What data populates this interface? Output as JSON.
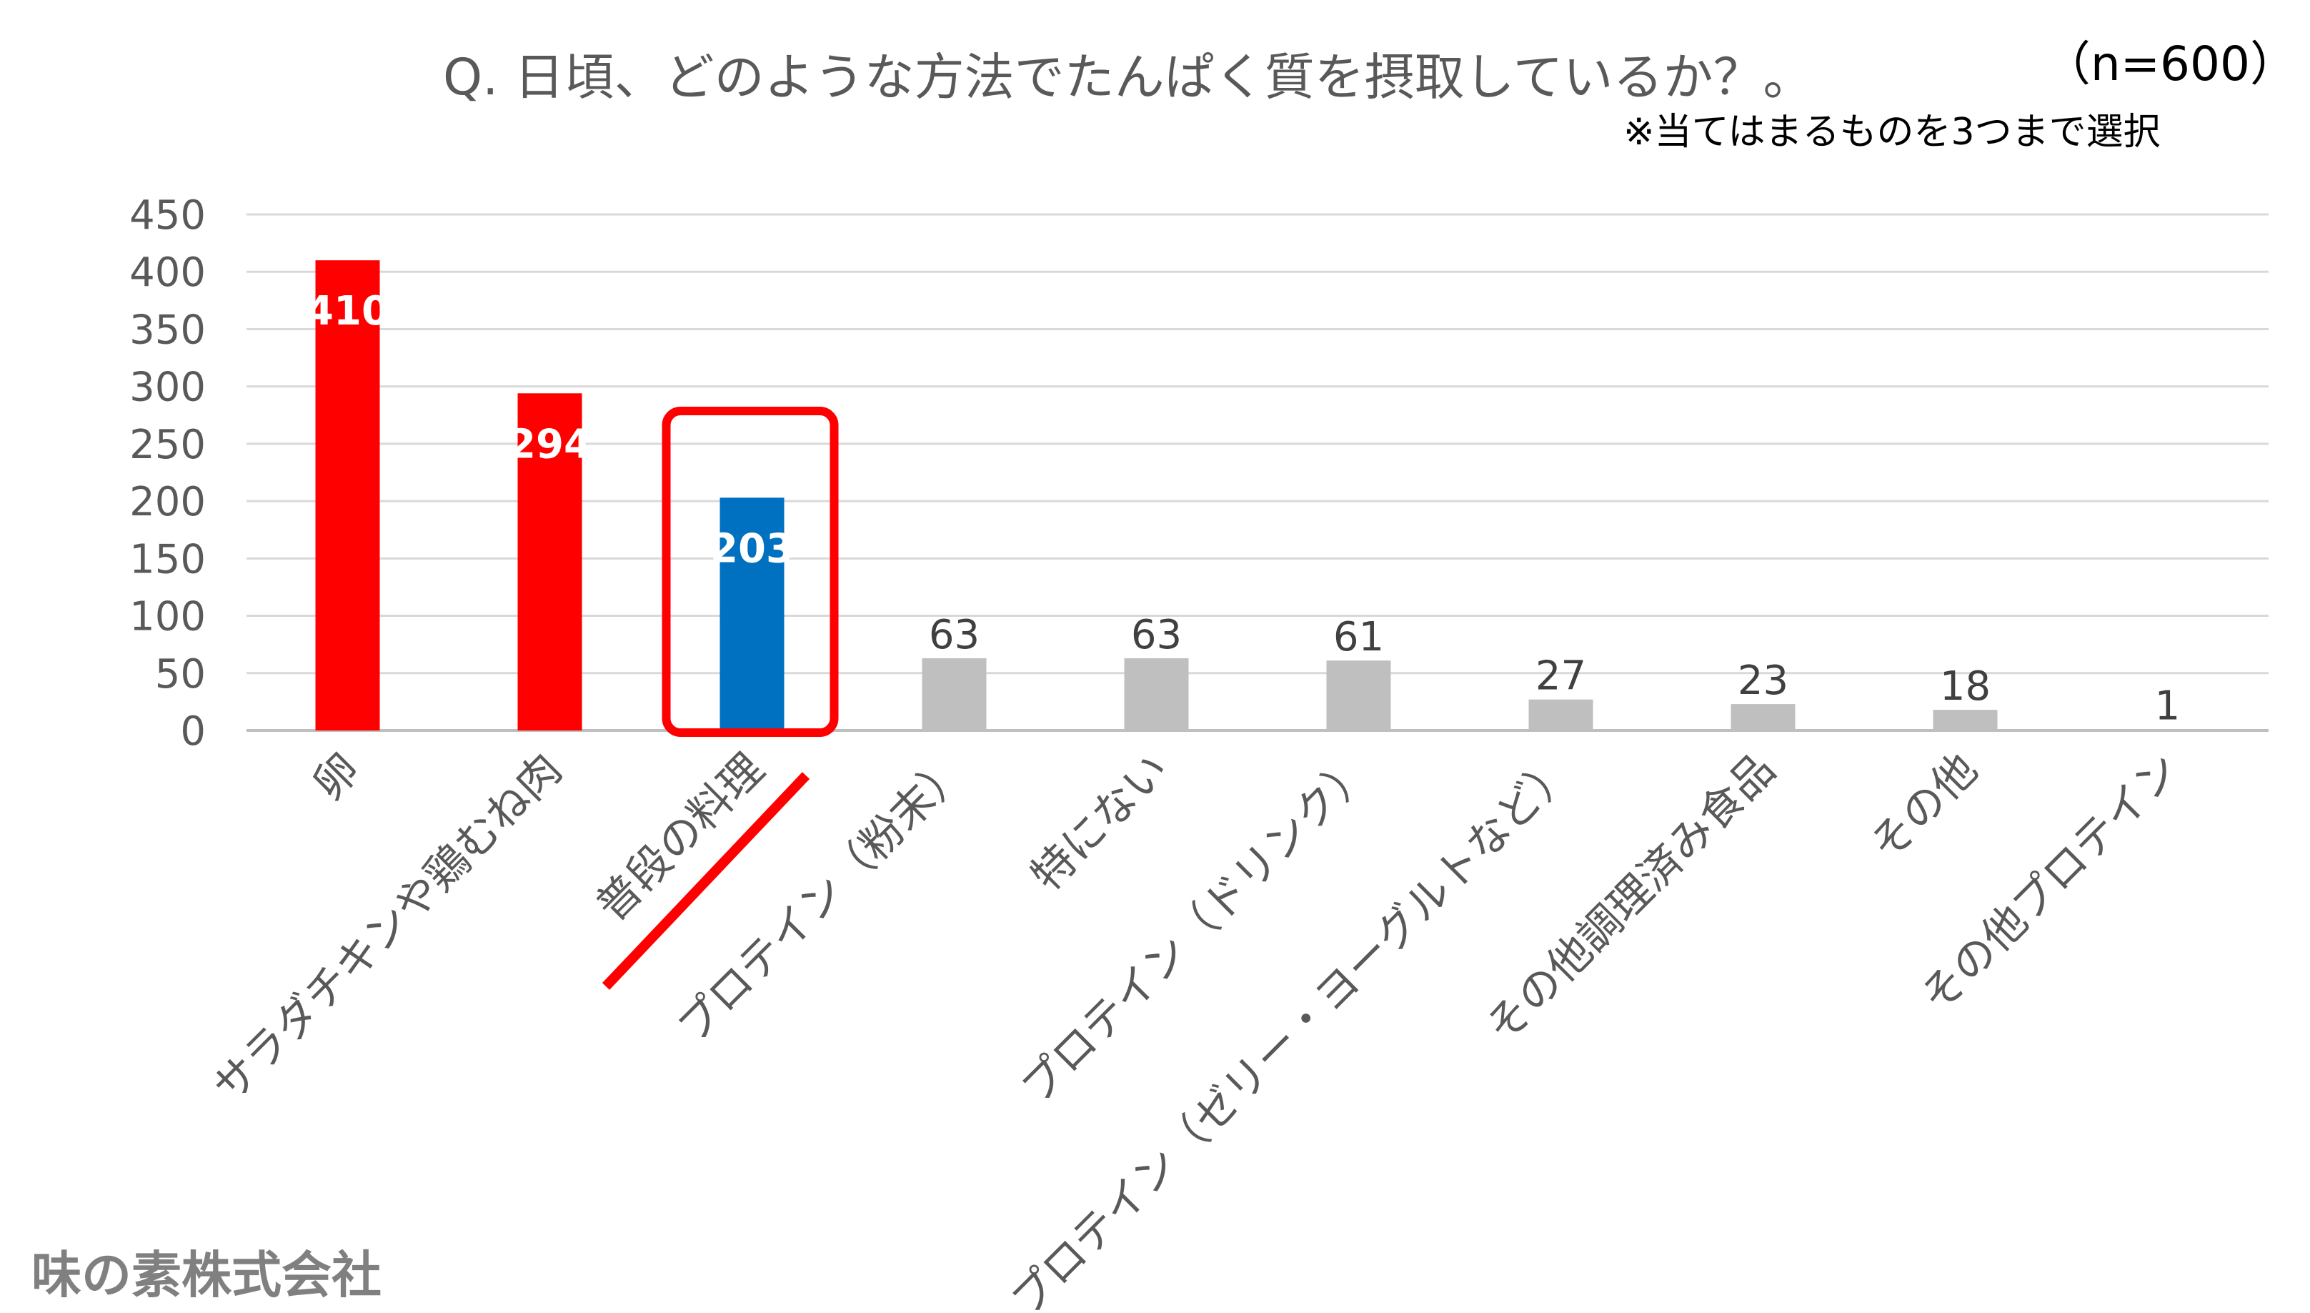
{
  "title": "Q. 日頃、どのような方法でたんぱく質を摂取しているか？。",
  "sample_size": "（n=600）",
  "note": "※当てはまるものを3つまで選択",
  "source": "味の素株式会社",
  "colors": {
    "highlight_red": "#FF0000",
    "highlight_blue": "#0070C0",
    "other_gray": "#BFBFBF",
    "gridline": "#D9D9D9",
    "axis_text": "#595959",
    "callout_box": "#FF0000"
  },
  "chart_data": {
    "type": "bar",
    "title": "Q. 日頃、どのような方法でたんぱく質を摂取しているか？。",
    "categories": [
      "卵",
      "サラダチキンや鶏むね肉",
      "普段の料理",
      "プロテイン（粉末）",
      "特にない",
      "プロテイン（ドリンク）",
      "プロテイン（ゼリー・ヨーグルトなど）",
      "その他調理済み食品",
      "その他",
      "その他プロテイン"
    ],
    "values": [
      410,
      294,
      203,
      63,
      63,
      61,
      27,
      23,
      18,
      1
    ],
    "value_labels": [
      "410",
      "294",
      "203",
      "63",
      "63",
      "61",
      "27",
      "23",
      "18",
      "1"
    ],
    "bar_colors": [
      "#FF0000",
      "#FF0000",
      "#0070C0",
      "#BFBFBF",
      "#BFBFBF",
      "#BFBFBF",
      "#BFBFBF",
      "#BFBFBF",
      "#BFBFBF",
      "#BFBFBF"
    ],
    "yticks": [
      0,
      50,
      100,
      150,
      200,
      250,
      300,
      350,
      400,
      450
    ],
    "ytick_labels": [
      "0",
      "50",
      "100",
      "150",
      "200",
      "250",
      "300",
      "350",
      "400",
      "450"
    ],
    "ylim": [
      0,
      450
    ],
    "grid": true,
    "highlighted_category": "普段の料理",
    "legend": "none"
  }
}
